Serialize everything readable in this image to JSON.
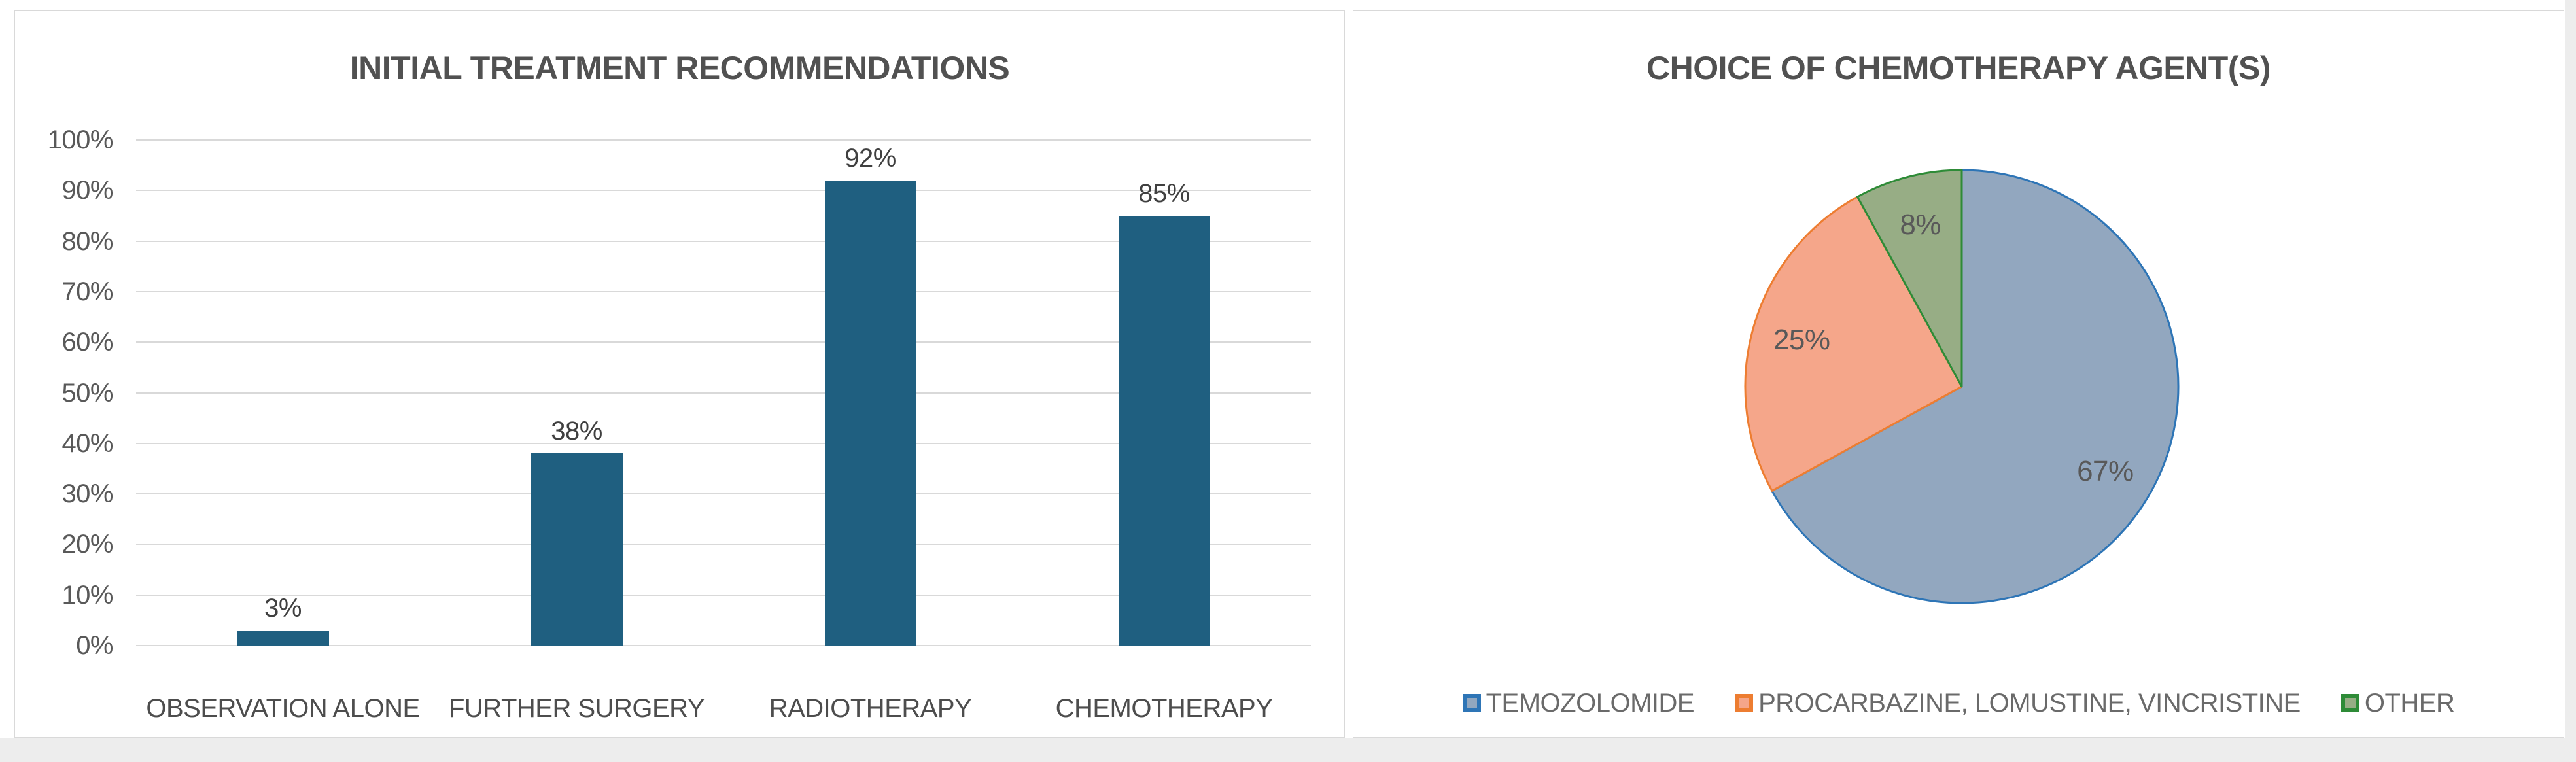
{
  "page": {
    "background_color": "#ffffff",
    "edge_strip_color": "#ededed",
    "panel_border_color": "#d9d9d9",
    "grid_color": "#d9d9d9",
    "text_colors": {
      "title": "#515151",
      "axis_ticks": "#595959",
      "data_labels": "#404040",
      "legend": "#6a6a6a"
    }
  },
  "chart_data": [
    {
      "type": "bar",
      "title": "INITIAL TREATMENT RECOMMENDATIONS",
      "categories": [
        "OBSERVATION ALONE",
        "FURTHER SURGERY",
        "RADIOTHERAPY",
        "CHEMOTHERAPY"
      ],
      "values": [
        3,
        38,
        92,
        85
      ],
      "value_labels": [
        "3%",
        "38%",
        "92%",
        "85%"
      ],
      "y_ticks": [
        "100%",
        "90%",
        "80%",
        "70%",
        "60%",
        "50%",
        "40%",
        "30%",
        "20%",
        "10%",
        "0%"
      ],
      "ylim": [
        0,
        100
      ],
      "grid": true,
      "legend": "none",
      "bar_color": "#1f5f80",
      "xlabel": "",
      "ylabel": ""
    },
    {
      "type": "pie",
      "title": "CHOICE OF CHEMOTHERAPY AGENT(S)",
      "start_angle_deg": 0,
      "direction": "clockwise",
      "legend_position": "bottom",
      "slices": [
        {
          "label": "TEMOZOLOMIDE",
          "value": 67,
          "display": "67%",
          "fill": "#92a7bf",
          "stroke": "#2e75b6"
        },
        {
          "label": "PROCARBAZINE, LOMUSTINE, VINCRISTINE",
          "value": 25,
          "display": "25%",
          "fill": "#f5a68a",
          "stroke": "#ed7d31"
        },
        {
          "label": "OTHER",
          "value": 8,
          "display": "8%",
          "fill": "#97ad85",
          "stroke": "#2e8b37"
        }
      ]
    }
  ]
}
